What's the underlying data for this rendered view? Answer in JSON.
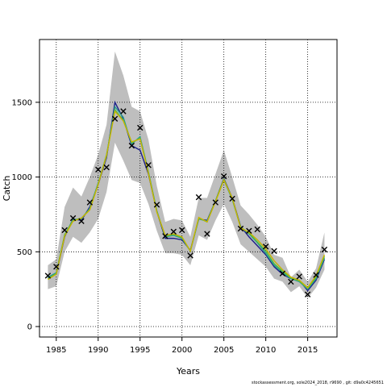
{
  "chart_data": {
    "type": "line",
    "xlabel": "Years",
    "ylabel": "Catch",
    "xlim": [
      1983,
      2018.5
    ],
    "ylim": [
      -70,
      1920
    ],
    "grid": true,
    "x_ticks": [
      1985,
      1990,
      1995,
      2000,
      2005,
      2010,
      2015
    ],
    "y_ticks": [
      0,
      500,
      1000,
      1500
    ],
    "x": [
      1984,
      1985,
      1986,
      1987,
      1988,
      1989,
      1990,
      1991,
      1992,
      1993,
      1994,
      1995,
      1996,
      1997,
      1998,
      1999,
      2000,
      2001,
      2002,
      2003,
      2004,
      2005,
      2006,
      2007,
      2008,
      2009,
      2010,
      2011,
      2012,
      2013,
      2014,
      2015,
      2016,
      2017
    ],
    "observed": {
      "marker": "x",
      "values": [
        340,
        400,
        645,
        725,
        705,
        830,
        1050,
        1065,
        1390,
        1440,
        1210,
        1330,
        1080,
        815,
        605,
        635,
        645,
        475,
        865,
        620,
        830,
        1005,
        855,
        655,
        640,
        650,
        535,
        505,
        355,
        300,
        335,
        215,
        345,
        515
      ]
    },
    "band": {
      "color": "#bebebe",
      "upper": [
        410,
        450,
        800,
        930,
        870,
        1000,
        1150,
        1350,
        1840,
        1680,
        1470,
        1440,
        1250,
        940,
        700,
        720,
        710,
        600,
        860,
        860,
        1020,
        1180,
        1000,
        810,
        750,
        680,
        600,
        480,
        460,
        330,
        380,
        300,
        390,
        630
      ],
      "lower": [
        250,
        270,
        500,
        600,
        560,
        630,
        720,
        900,
        1230,
        1110,
        980,
        960,
        820,
        640,
        490,
        490,
        480,
        410,
        610,
        580,
        710,
        820,
        700,
        550,
        500,
        450,
        400,
        320,
        300,
        230,
        270,
        190,
        260,
        380
      ]
    },
    "series": [
      {
        "color": "#1b1f8a",
        "values": [
          325,
          350,
          600,
          720,
          710,
          800,
          950,
          1130,
          1500,
          1390,
          1210,
          1180,
          1020,
          770,
          590,
          590,
          580,
          510,
          720,
          710,
          840,
          990,
          860,
          670,
          600,
          540,
          480,
          400,
          350,
          320,
          310,
          240,
          310,
          450
        ]
      },
      {
        "color": "#2a9d8f",
        "values": [
          330,
          360,
          610,
          715,
          720,
          790,
          960,
          1140,
          1470,
          1400,
          1220,
          1270,
          1035,
          775,
          600,
          610,
          590,
          505,
          720,
          705,
          840,
          980,
          850,
          665,
          620,
          560,
          490,
          410,
          360,
          320,
          300,
          250,
          320,
          460
        ]
      },
      {
        "color": "#4db848",
        "values": [
          320,
          355,
          615,
          710,
          725,
          785,
          955,
          1150,
          1450,
          1380,
          1230,
          1260,
          1030,
          770,
          605,
          615,
          595,
          505,
          725,
          700,
          840,
          985,
          855,
          665,
          625,
          565,
          505,
          420,
          370,
          325,
          305,
          255,
          330,
          470
        ]
      },
      {
        "color": "#c8b400",
        "values": [
          315,
          350,
          605,
          705,
          725,
          780,
          950,
          1145,
          1440,
          1375,
          1235,
          1255,
          1025,
          765,
          610,
          620,
          600,
          505,
          730,
          700,
          835,
          980,
          860,
          660,
          630,
          580,
          520,
          440,
          380,
          330,
          310,
          260,
          340,
          480
        ]
      }
    ]
  },
  "footnote": "stockassessment.org, sole2024_2018, r9690 , git: d9a0c4245651"
}
